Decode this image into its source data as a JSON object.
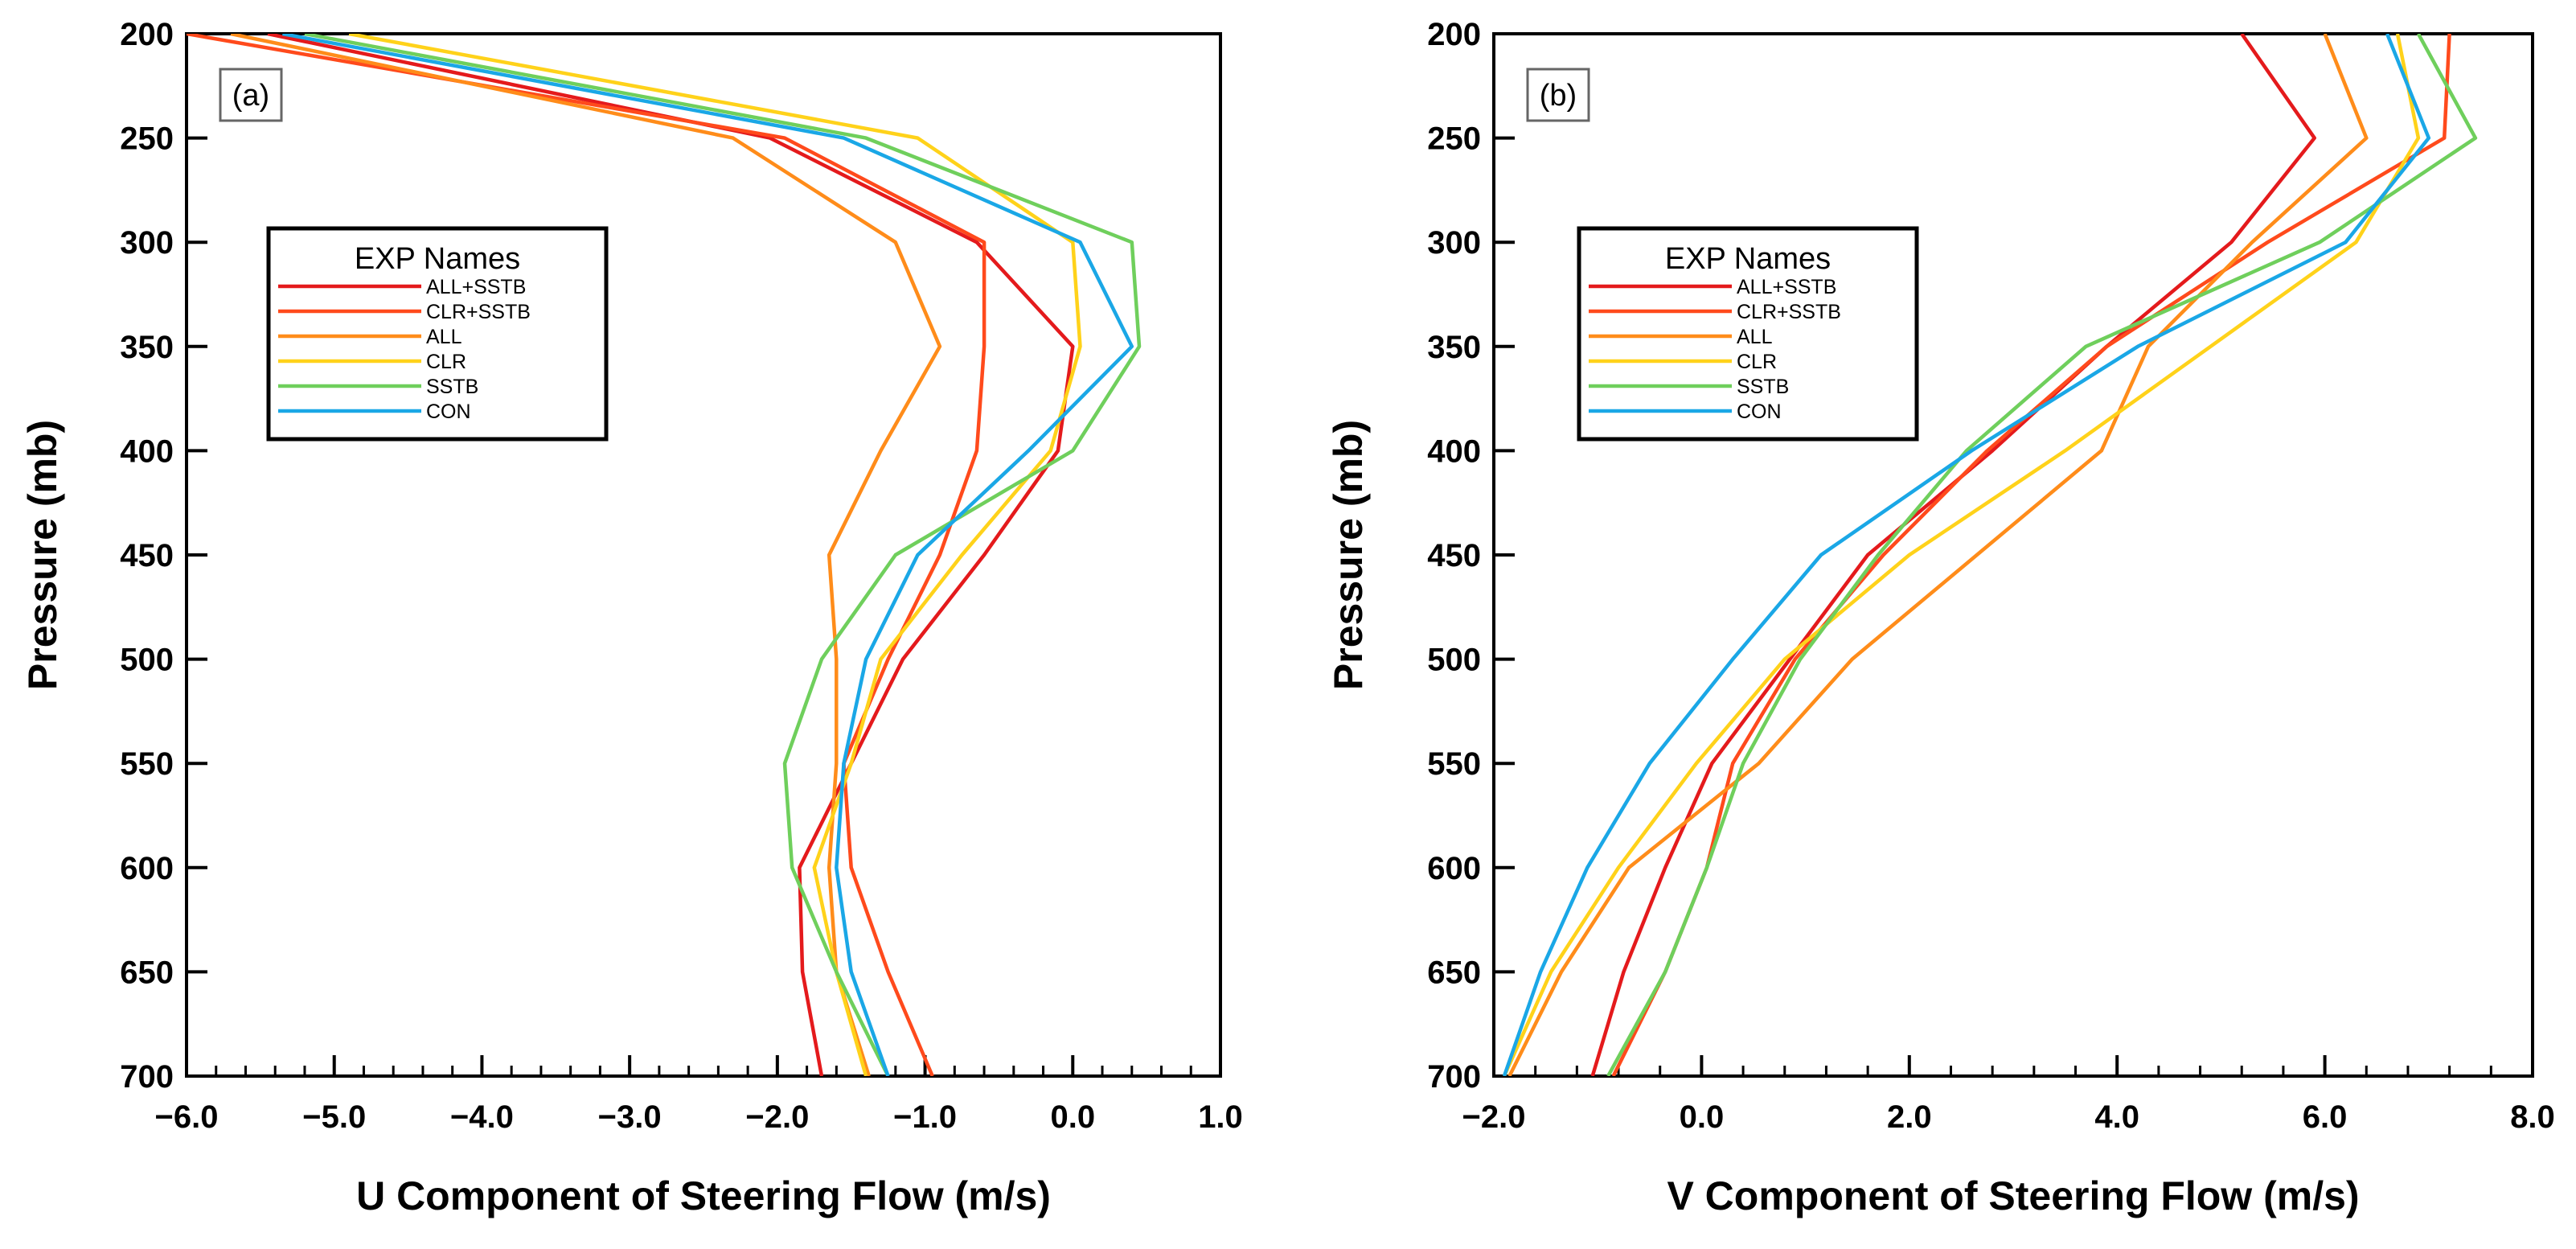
{
  "colors": {
    "ALL+SSTB": "#e41a1c",
    "CLR+SSTB": "#ff4a1c",
    "ALL": "#ff8c1a",
    "CLR": "#ffd21a",
    "SSTB": "#6fcf5c",
    "CON": "#1aa7e6"
  },
  "chart_data": [
    {
      "type": "line",
      "panel_label": "(a)",
      "xlabel": "U Component of Steering Flow (m/s)",
      "ylabel": "Pressure (mb)",
      "xlim": [
        -6.0,
        1.0
      ],
      "ylim": [
        200,
        700
      ],
      "y_inverted": true,
      "x_ticks": [
        "−6.0",
        "−5.0",
        "−4.0",
        "−3.0",
        "−2.0",
        "−1.0",
        "0.0",
        "1.0"
      ],
      "y_ticks": [
        "200",
        "250",
        "300",
        "350",
        "400",
        "450",
        "500",
        "550",
        "600",
        "650",
        "700"
      ],
      "legend": {
        "title": "EXP Names",
        "entries": [
          "ALL+SSTB",
          "CLR+SSTB",
          "ALL",
          "CLR",
          "SSTB",
          "CON"
        ]
      },
      "pressure_levels": [
        200,
        250,
        300,
        350,
        400,
        450,
        500,
        550,
        600,
        650,
        700
      ],
      "series": [
        {
          "name": "ALL+SSTB",
          "values": [
            -5.45,
            -2.05,
            -0.65,
            0.0,
            -0.1,
            -0.6,
            -1.15,
            -1.5,
            -1.85,
            -1.83,
            -1.7
          ]
        },
        {
          "name": "CLR+SSTB",
          "values": [
            -6.0,
            -1.95,
            -0.6,
            -0.6,
            -0.65,
            -0.9,
            -1.25,
            -1.55,
            -1.5,
            -1.25,
            -0.95
          ]
        },
        {
          "name": "ALL",
          "values": [
            -5.7,
            -2.3,
            -1.2,
            -0.9,
            -1.3,
            -1.65,
            -1.6,
            -1.6,
            -1.65,
            -1.6,
            -1.38
          ]
        },
        {
          "name": "CLR",
          "values": [
            -4.9,
            -1.05,
            0.0,
            0.05,
            -0.15,
            -0.75,
            -1.3,
            -1.5,
            -1.75,
            -1.6,
            -1.4
          ]
        },
        {
          "name": "SSTB",
          "values": [
            -5.2,
            -1.4,
            0.4,
            0.45,
            0.0,
            -1.2,
            -1.7,
            -1.95,
            -1.9,
            -1.6,
            -1.25
          ]
        },
        {
          "name": "CON",
          "values": [
            -5.35,
            -1.55,
            0.05,
            0.4,
            -0.3,
            -1.05,
            -1.4,
            -1.55,
            -1.6,
            -1.5,
            -1.25
          ]
        }
      ]
    },
    {
      "type": "line",
      "panel_label": "(b)",
      "xlabel": "V Component of Steering Flow (m/s)",
      "ylabel": "Pressure (mb)",
      "xlim": [
        -2.0,
        8.0
      ],
      "ylim": [
        200,
        700
      ],
      "y_inverted": true,
      "x_ticks": [
        "−2.0",
        "0.0",
        "2.0",
        "4.0",
        "6.0",
        "8.0"
      ],
      "y_ticks": [
        "200",
        "250",
        "300",
        "350",
        "400",
        "450",
        "500",
        "550",
        "600",
        "650",
        "700"
      ],
      "legend": {
        "title": "EXP Names",
        "entries": [
          "ALL+SSTB",
          "CLR+SSTB",
          "ALL",
          "CLR",
          "SSTB",
          "CON"
        ]
      },
      "pressure_levels": [
        200,
        250,
        300,
        350,
        400,
        450,
        500,
        550,
        600,
        650,
        700
      ],
      "series": [
        {
          "name": "ALL+SSTB",
          "values": [
            5.2,
            5.9,
            5.1,
            3.9,
            2.8,
            1.6,
            0.85,
            0.1,
            -0.35,
            -0.75,
            -1.05
          ]
        },
        {
          "name": "CLR+SSTB",
          "values": [
            7.2,
            7.15,
            5.45,
            3.9,
            2.75,
            1.75,
            0.9,
            0.3,
            0.05,
            -0.35,
            -0.85
          ]
        },
        {
          "name": "ALL",
          "values": [
            6.0,
            6.4,
            5.3,
            4.3,
            3.85,
            2.65,
            1.45,
            0.55,
            -0.7,
            -1.35,
            -1.85
          ]
        },
        {
          "name": "CLR",
          "values": [
            6.7,
            6.9,
            6.3,
            4.9,
            3.5,
            2.0,
            0.8,
            -0.05,
            -0.8,
            -1.45,
            -1.9
          ]
        },
        {
          "name": "SSTB",
          "values": [
            6.9,
            7.45,
            5.95,
            3.7,
            2.55,
            1.7,
            0.95,
            0.4,
            0.05,
            -0.35,
            -0.9
          ]
        },
        {
          "name": "CON",
          "values": [
            6.6,
            7.0,
            6.2,
            4.2,
            2.6,
            1.15,
            0.3,
            -0.5,
            -1.1,
            -1.55,
            -1.9
          ]
        }
      ]
    }
  ]
}
